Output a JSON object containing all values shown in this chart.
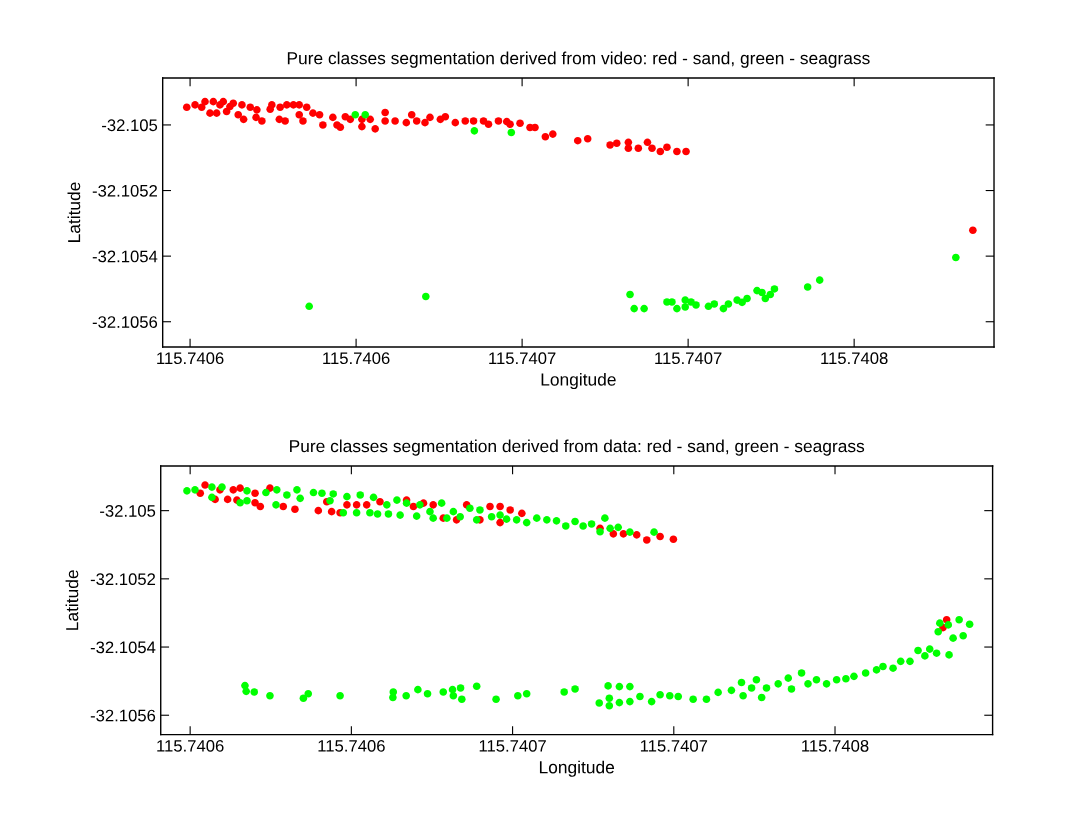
{
  "chart_data": [
    {
      "type": "scatter",
      "title": "Pure classes segmentation derived from video: red - sand, green - seagrass",
      "xlabel": "Longitude",
      "ylabel": "Latitude",
      "marker": "circle",
      "xlim": [
        115.7405934,
        115.7407937
      ],
      "ylim": [
        -32.105677,
        -32.104857
      ],
      "xticks": [
        {
          "value": 115.7406,
          "label": "115.7406"
        },
        {
          "value": 115.74064,
          "label": "115.7406"
        },
        {
          "value": 115.74068,
          "label": "115.7407"
        },
        {
          "value": 115.74072,
          "label": "115.7407"
        },
        {
          "value": 115.74076,
          "label": "115.7408"
        }
      ],
      "yticks": [
        -32.105,
        -32.1052,
        -32.1054,
        -32.1056
      ],
      "series": [
        {
          "color": "#ff0000",
          "x": [
            115.7405992,
            115.7406012,
            115.7406028,
            115.7406036,
            115.7406056,
            115.7406048,
            115.7406064,
            115.7406072,
            115.740608,
            115.7406088,
            115.7406096,
            115.7406104,
            115.7406116,
            115.7406129,
            115.7406125,
            115.7406145,
            115.7406161,
            115.7406159,
            115.7406173,
            115.7406193,
            115.7406197,
            115.7406215,
            115.7406217,
            115.7406229,
            115.7406233,
            115.7406249,
            115.7406263,
            115.7406263,
            115.7406272,
            115.7406281,
            115.7406296,
            115.7406312,
            115.740632,
            115.7406344,
            115.7406354,
            115.7406362,
            115.7406374,
            115.7406386,
            115.7406414,
            115.7406414,
            115.7406434,
            115.7406446,
            115.740647,
            115.740647,
            115.7406494,
            115.7406521,
            115.7406534,
            115.7406546,
            115.7406566,
            115.7406578,
            115.7406603,
            115.7406615,
            115.7406639,
            115.7406663,
            115.7406683,
            115.7406707,
            115.7406719,
            115.7406743,
            115.7406763,
            115.7406771,
            115.7406795,
            115.7406819,
            115.7406831,
            115.7406856,
            115.7406874,
            115.7406934,
            115.7406958,
            115.7407012,
            115.7407028,
            115.7407056,
            115.7407056,
            115.740708,
            115.7407102,
            115.7407113,
            115.7407133,
            115.7407149,
            115.7407173,
            115.7407195,
            115.7407886
          ],
          "values": [
            -32.104946,
            -32.104939,
            -32.104946,
            -32.104929,
            -32.104929,
            -32.104964,
            -32.104964,
            -32.104939,
            -32.104929,
            -32.104959,
            -32.104944,
            -32.104934,
            -32.104969,
            -32.104983,
            -32.104939,
            -32.104946,
            -32.104954,
            -32.104977,
            -32.104988,
            -32.104952,
            -32.104939,
            -32.104983,
            -32.104946,
            -32.104988,
            -32.104939,
            -32.104939,
            -32.104939,
            -32.104969,
            -32.104988,
            -32.104946,
            -32.104964,
            -32.104969,
            -32.105,
            -32.104977,
            -32.105,
            -32.105007,
            -32.104975,
            -32.104983,
            -32.105005,
            -32.104983,
            -32.104983,
            -32.105012,
            -32.104962,
            -32.104988,
            -32.104988,
            -32.104993,
            -32.104969,
            -32.104988,
            -32.104993,
            -32.104977,
            -32.104983,
            -32.104975,
            -32.104993,
            -32.104988,
            -32.104988,
            -32.104988,
            -32.104998,
            -32.104988,
            -32.10499,
            -32.104998,
            -32.104995,
            -32.105008,
            -32.105008,
            -32.105036,
            -32.105028,
            -32.105048,
            -32.105042,
            -32.105061,
            -32.105056,
            -32.105053,
            -32.105071,
            -32.105071,
            -32.105053,
            -32.105071,
            -32.105081,
            -32.105068,
            -32.105081,
            -32.105081,
            -32.105321
          ]
        },
        {
          "color": "#00ff00",
          "x": [
            115.7406398,
            115.7406422,
            115.7406685,
            115.7406774,
            115.7406287,
            115.7406568,
            115.740706,
            115.740707,
            115.7407094,
            115.7407149,
            115.7407161,
            115.7407173,
            115.7407193,
            115.7407193,
            115.7407207,
            115.7407219,
            115.7407249,
            115.7407263,
            115.7407285,
            115.7407297,
            115.7407318,
            115.740733,
            115.7407342,
            115.7407366,
            115.7407378,
            115.7407386,
            115.7407398,
            115.7407408,
            115.7407488,
            115.7407517,
            115.7407845
          ],
          "values": [
            -32.104969,
            -32.104969,
            -32.105018,
            -32.105023,
            -32.105553,
            -32.105523,
            -32.105517,
            -32.10556,
            -32.10556,
            -32.10554,
            -32.10554,
            -32.10556,
            -32.105534,
            -32.105555,
            -32.10554,
            -32.105549,
            -32.105553,
            -32.105546,
            -32.10556,
            -32.105546,
            -32.105534,
            -32.105541,
            -32.105529,
            -32.105505,
            -32.105511,
            -32.105529,
            -32.105517,
            -32.1055,
            -32.105494,
            -32.105473,
            -32.105404
          ]
        }
      ]
    },
    {
      "type": "scatter",
      "title": "Pure classes segmentation derived from data: red - sand, green - seagrass",
      "xlabel": "Longitude",
      "ylabel": "Latitude",
      "marker": "circle",
      "xlim": [
        115.7405927,
        115.7407991
      ],
      "ylim": [
        -32.105657,
        -32.104869
      ],
      "xticks": [
        {
          "value": 115.7406,
          "label": "115.7406"
        },
        {
          "value": 115.74064,
          "label": "115.7406"
        },
        {
          "value": 115.74068,
          "label": "115.7407"
        },
        {
          "value": 115.74072,
          "label": "115.7407"
        },
        {
          "value": 115.74076,
          "label": "115.7408"
        }
      ],
      "yticks": [
        -32.105,
        -32.1052,
        -32.1054,
        -32.1056
      ],
      "series": [
        {
          "color": "#ff0000",
          "x": [
            115.7406025,
            115.7406037,
            115.7406062,
            115.7406074,
            115.7406093,
            115.7406107,
            115.7406124,
            115.7406116,
            115.7406161,
            115.7406161,
            115.7406174,
            115.7406198,
            115.7406231,
            115.740626,
            115.7406318,
            115.7406339,
            115.7406351,
            115.7406372,
            115.7406389,
            115.7406413,
            115.7406438,
            115.7406471,
            115.7406537,
            115.7406554,
            115.7406579,
            115.7406603,
            115.7406628,
            115.7406661,
            115.7406686,
            115.7406719,
            115.7406744,
            115.7406769,
            115.7406769,
            115.7406794,
            115.7406823,
            115.7407017,
            115.740705,
            115.7407075,
            115.7407108,
            115.7407133,
            115.7407166,
            115.7407199,
            115.7407877,
            115.7407868
          ],
          "values": [
            -32.104949,
            -32.104925,
            -32.104967,
            -32.104939,
            -32.104967,
            -32.104939,
            -32.104934,
            -32.104969,
            -32.104949,
            -32.104977,
            -32.104988,
            -32.104934,
            -32.104988,
            -32.104996,
            -32.105,
            -32.104974,
            -32.105003,
            -32.105006,
            -32.104983,
            -32.104983,
            -32.104983,
            -32.104974,
            -32.104969,
            -32.104988,
            -32.104978,
            -32.104983,
            -32.105022,
            -32.105027,
            -32.104983,
            -32.105027,
            -32.104988,
            -32.104988,
            -32.105035,
            -32.104998,
            -32.105008,
            -32.105052,
            -32.105068,
            -32.105068,
            -32.105071,
            -32.105086,
            -32.105076,
            -32.105084,
            -32.10532,
            -32.105343
          ]
        },
        {
          "color": "#00ff00",
          "x": [
            115.7405992,
            115.7406012,
            115.7406054,
            115.7406054,
            115.7406079,
            115.7406124,
            115.7406141,
            115.7406141,
            115.7406188,
            115.7406213,
            115.7406215,
            115.740624,
            115.7406265,
            115.7406273,
            115.7406306,
            115.7406327,
            115.7406347,
            115.7406355,
            115.740638,
            115.7406389,
            115.7406413,
            115.7406422,
            115.7406446,
            115.7406455,
            115.7406465,
            115.7406488,
            115.7406492,
            115.7406513,
            115.7406521,
            115.7406537,
            115.7406562,
            115.740657,
            115.7406595,
            115.7406603,
            115.7406624,
            115.7406637,
            115.7406653,
            115.740667,
            115.7406694,
            115.7406711,
            115.7406719,
            115.7406748,
            115.7406769,
            115.7406785,
            115.740681,
            115.7406835,
            115.740686,
            115.7406885,
            115.7406909,
            115.7406932,
            115.7406955,
            115.7406975,
            115.7406996,
            115.7407017,
            115.7407029,
            115.7407042,
            115.7407062,
            115.7407091,
            115.7407151,
            115.7406136,
            115.7406139,
            115.7406159,
            115.7406198,
            115.7406281,
            115.7406293,
            115.7406372,
            115.7406504,
            115.7406503,
            115.7406536,
            115.7406565,
            115.7406589,
            115.7406628,
            115.7406651,
            115.7406671,
            115.7406653,
            115.7406674,
            115.7406711,
            115.7406759,
            115.7406813,
            115.7406835,
            115.7406928,
            115.7406955,
            115.7407015,
            115.7407037,
            115.740704,
            115.740704,
            115.7407065,
            115.7407065,
            115.7407091,
            115.7407091,
            115.7407116,
            115.7407145,
            115.7407166,
            115.740719,
            115.7407211,
            115.7407248,
            115.7407281,
            115.740731,
            115.7407343,
            115.7407368,
            115.7407372,
            115.7407393,
            115.7407405,
            115.7407418,
            115.740743,
            115.7407459,
            115.7407484,
            115.7407492,
            115.7407517,
            115.7407533,
            115.7407554,
            115.7407579,
            115.7407604,
            115.7407627,
            115.7407647,
            115.7407676,
            115.7407703,
            115.7407719,
            115.7407744,
            115.7407763,
            115.7407786,
            115.7407806,
            115.7407823,
            115.7407835,
            115.7407852,
            115.7407883,
            115.7407856,
            115.740786,
            115.7407881,
            115.7407908,
            115.7407934,
            115.7407918,
            115.7407893
          ],
          "values": [
            -32.104942,
            -32.104939,
            -32.104931,
            -32.104961,
            -32.104931,
            -32.104977,
            -32.104942,
            -32.104971,
            -32.104947,
            -32.104983,
            -32.104939,
            -32.104954,
            -32.104939,
            -32.104964,
            -32.104947,
            -32.104949,
            -32.104971,
            -32.104951,
            -32.105006,
            -32.104959,
            -32.105006,
            -32.104954,
            -32.105006,
            -32.104961,
            -32.10501,
            -32.104983,
            -32.10501,
            -32.104969,
            -32.105013,
            -32.104978,
            -32.105016,
            -32.104983,
            -32.105003,
            -32.105022,
            -32.104978,
            -32.105022,
            -32.105003,
            -32.105018,
            -32.104993,
            -32.105027,
            -32.104998,
            -32.105018,
            -32.105013,
            -32.105025,
            -32.105027,
            -32.105035,
            -32.105022,
            -32.105027,
            -32.10503,
            -32.105045,
            -32.105032,
            -32.105045,
            -32.105039,
            -32.105062,
            -32.105022,
            -32.105052,
            -32.105049,
            -32.105063,
            -32.105063,
            -32.105513,
            -32.10553,
            -32.105532,
            -32.105543,
            -32.10555,
            -32.105537,
            -32.105543,
            -32.105532,
            -32.105548,
            -32.105543,
            -32.105525,
            -32.105537,
            -32.105532,
            -32.105525,
            -32.10552,
            -32.105543,
            -32.105553,
            -32.105515,
            -32.105553,
            -32.105543,
            -32.105537,
            -32.105532,
            -32.105523,
            -32.105564,
            -32.105514,
            -32.105572,
            -32.10555,
            -32.105516,
            -32.105563,
            -32.105516,
            -32.10556,
            -32.105545,
            -32.10556,
            -32.10554,
            -32.105543,
            -32.105545,
            -32.105553,
            -32.105553,
            -32.105533,
            -32.105527,
            -32.105504,
            -32.105543,
            -32.10552,
            -32.105496,
            -32.105548,
            -32.10552,
            -32.105508,
            -32.105491,
            -32.105523,
            -32.105476,
            -32.105508,
            -32.105496,
            -32.105508,
            -32.105496,
            -32.105493,
            -32.105486,
            -32.105476,
            -32.105467,
            -32.105457,
            -32.105462,
            -32.105442,
            -32.105442,
            -32.10541,
            -32.105426,
            -32.105406,
            -32.105418,
            -32.105423,
            -32.105355,
            -32.10533,
            -32.105335,
            -32.10532,
            -32.105333,
            -32.105367,
            -32.105374
          ]
        }
      ]
    }
  ]
}
